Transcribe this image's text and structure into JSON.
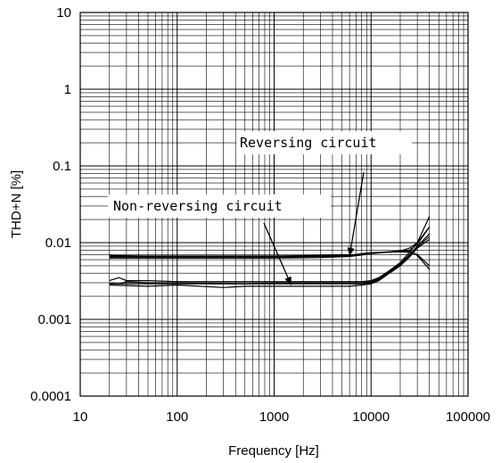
{
  "chart_data": {
    "type": "line",
    "title": "",
    "xlabel": "Frequency [Hz]",
    "ylabel": "THD+N [%]",
    "x_scale": "log",
    "y_scale": "log",
    "xlim": [
      10,
      100000
    ],
    "ylim": [
      0.0001,
      10
    ],
    "grid": true,
    "legend": "none",
    "x_ticks": [
      "10",
      "100",
      "1000",
      "10000",
      "100000"
    ],
    "y_ticks": [
      "10",
      "1",
      "0.1",
      "0.01",
      "0.001",
      "0.0001"
    ],
    "annotations": [
      {
        "text": "Reversing circuit",
        "target": [
          6000,
          0.0067
        ]
      },
      {
        "text": "Non-reversing circuit",
        "target": [
          1500,
          0.0028
        ]
      }
    ],
    "series": [
      {
        "x": [
          20,
          50,
          100,
          500,
          1000,
          3000,
          6000,
          8000,
          10000,
          15000,
          20000,
          25000,
          30000,
          40000
        ],
        "y": [
          0.0065,
          0.0065,
          0.0065,
          0.0065,
          0.0065,
          0.0066,
          0.0068,
          0.0072,
          0.0074,
          0.0076,
          0.0078,
          0.0085,
          0.01,
          0.022
        ]
      },
      {
        "x": [
          20,
          50,
          100,
          500,
          1000,
          3000,
          6000,
          8000,
          10000,
          15000,
          20000,
          25000,
          30000,
          40000
        ],
        "y": [
          0.0068,
          0.0067,
          0.0067,
          0.0067,
          0.0067,
          0.0068,
          0.0069,
          0.0071,
          0.0073,
          0.0075,
          0.0077,
          0.008,
          0.0095,
          0.016
        ]
      },
      {
        "x": [
          20,
          50,
          100,
          500,
          1000,
          3000,
          6000,
          8000,
          10000,
          15000,
          20000,
          25000,
          30000,
          40000
        ],
        "y": [
          0.0063,
          0.0063,
          0.0063,
          0.0063,
          0.0063,
          0.0064,
          0.0066,
          0.0069,
          0.0072,
          0.0075,
          0.0076,
          0.0075,
          0.007,
          0.005
        ]
      },
      {
        "x": [
          20,
          50,
          100,
          500,
          1000,
          3000,
          6000,
          8000,
          10000,
          15000,
          20000,
          25000,
          30000,
          40000
        ],
        "y": [
          0.0066,
          0.0066,
          0.0066,
          0.0066,
          0.0066,
          0.0066,
          0.0067,
          0.007,
          0.0073,
          0.0076,
          0.0078,
          0.0078,
          0.0068,
          0.0045
        ]
      },
      {
        "x": [
          20,
          25,
          30,
          50,
          100,
          500,
          1000,
          3000,
          6000,
          8000,
          10000,
          12000,
          15000,
          20000,
          25000,
          30000,
          40000
        ],
        "y": [
          0.0032,
          0.0035,
          0.0032,
          0.0032,
          0.0031,
          0.0031,
          0.0031,
          0.0031,
          0.0031,
          0.0031,
          0.0032,
          0.0035,
          0.0042,
          0.0055,
          0.0075,
          0.01,
          0.016
        ]
      },
      {
        "x": [
          20,
          25,
          30,
          50,
          100,
          500,
          1000,
          3000,
          6000,
          8000,
          10000,
          12000,
          15000,
          20000,
          25000,
          30000,
          40000
        ],
        "y": [
          0.003,
          0.0029,
          0.0031,
          0.003,
          0.003,
          0.0029,
          0.003,
          0.003,
          0.003,
          0.003,
          0.0031,
          0.0034,
          0.0041,
          0.0053,
          0.007,
          0.009,
          0.013
        ]
      },
      {
        "x": [
          20,
          50,
          100,
          500,
          1000,
          3000,
          6000,
          8000,
          10000,
          12000,
          15000,
          20000,
          25000,
          30000,
          40000
        ],
        "y": [
          0.0029,
          0.0029,
          0.0029,
          0.0029,
          0.0029,
          0.0029,
          0.0029,
          0.0029,
          0.003,
          0.0033,
          0.004,
          0.0052,
          0.0068,
          0.0088,
          0.012
        ]
      },
      {
        "x": [
          20,
          50,
          100,
          300,
          500,
          1000,
          3000,
          6000,
          8000,
          10000,
          12000,
          15000,
          20000,
          25000,
          30000,
          40000
        ],
        "y": [
          0.0028,
          0.0027,
          0.0028,
          0.0026,
          0.0027,
          0.0027,
          0.0027,
          0.0027,
          0.0028,
          0.0029,
          0.0032,
          0.0039,
          0.005,
          0.0065,
          0.0085,
          0.011
        ]
      }
    ]
  }
}
